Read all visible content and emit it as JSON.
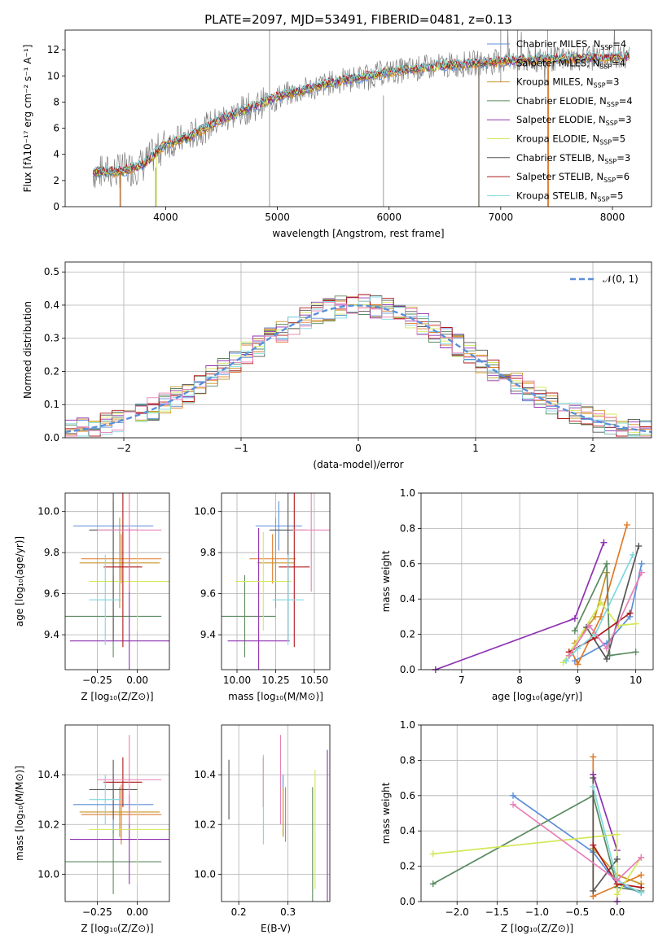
{
  "colors": {
    "Chabrier MILES": "#5b8fd9",
    "Salpeter MILES": "#e07b28",
    "Kroupa MILES": "#c8952a",
    "Chabrier ELODIE": "#5a8a5f",
    "Salpeter ELODIE": "#8e32b0",
    "Kroupa ELODIE": "#d4e85a",
    "Chabrier STELIB": "#555555",
    "Salpeter STELIB": "#b01818",
    "Kroupa STELIB": "#7fd8e0",
    "extra_pink": "#e87fb8",
    "data": "#808080",
    "normal": "#5b8fd9"
  },
  "chart_data": [
    {
      "id": "spectrum",
      "type": "line",
      "title": "PLATE=2097, MJD=53491, FIBERID=0481, z=0.13",
      "xlabel": "wavelength [Angstrom, rest frame]",
      "ylabel": "Flux [fλ10⁻¹⁷ erg cm⁻² s⁻¹ A⁻¹]",
      "xlim": [
        3100,
        8350
      ],
      "ylim": [
        0,
        13.5
      ],
      "xticks": [
        "4000",
        "5000",
        "6000",
        "7000",
        "8000"
      ],
      "yticks": [
        "0",
        "2",
        "4",
        "6",
        "8",
        "10",
        "12"
      ],
      "continuum": [
        [
          3350,
          2.6
        ],
        [
          3600,
          2.7
        ],
        [
          3800,
          3.2
        ],
        [
          4000,
          4.8
        ],
        [
          4200,
          5.3
        ],
        [
          4500,
          6.7
        ],
        [
          4800,
          7.7
        ],
        [
          5000,
          8.4
        ],
        [
          5500,
          9.5
        ],
        [
          6000,
          10.3
        ],
        [
          6500,
          10.8
        ],
        [
          7000,
          11.1
        ],
        [
          7500,
          11.3
        ],
        [
          8000,
          11.4
        ],
        [
          8150,
          11.5
        ]
      ],
      "legend": [
        {
          "label": "Chabrier MILES, N",
          "sub": "SSP",
          "suffix": "=4"
        },
        {
          "label": "Salpeter MILES, N",
          "sub": "SSP",
          "suffix": "=4"
        },
        {
          "label": "Kroupa MILES, N",
          "sub": "SSP",
          "suffix": "=3"
        },
        {
          "label": "Chabrier ELODIE, N",
          "sub": "SSP",
          "suffix": "=4"
        },
        {
          "label": "Salpeter ELODIE, N",
          "sub": "SSP",
          "suffix": "=3"
        },
        {
          "label": "Kroupa ELODIE, N",
          "sub": "SSP",
          "suffix": "=5"
        },
        {
          "label": "Chabrier STELIB, N",
          "sub": "SSP",
          "suffix": "=3"
        },
        {
          "label": "Salpeter STELIB, N",
          "sub": "SSP",
          "suffix": "=6"
        },
        {
          "label": "Kroupa STELIB, N",
          "sub": "SSP",
          "suffix": "=5"
        }
      ]
    },
    {
      "id": "residuals",
      "type": "line",
      "xlabel": "(data-model)/error",
      "ylabel": "Normed distribution",
      "xlim": [
        -2.5,
        2.5
      ],
      "ylim": [
        0,
        0.53
      ],
      "xticks": [
        "−2",
        "−1",
        "0",
        "1",
        "2"
      ],
      "xtick_values": [
        -2,
        -1,
        0,
        1,
        2
      ],
      "yticks": [
        "0.0",
        "0.1",
        "0.2",
        "0.3",
        "0.4",
        "0.5"
      ],
      "legend": "𝒩(0, 1)"
    },
    {
      "id": "age_vs_Z",
      "type": "scatter",
      "xlabel": "Z [log₁₀(Z/Z⊙)]",
      "ylabel": "age  [log₁₀(age/yr)]",
      "xlim": [
        -0.45,
        0.2
      ],
      "ylim": [
        9.23,
        10.09
      ],
      "xticks": [
        "−0.25",
        "0.00"
      ],
      "xtick_values": [
        -0.25,
        0.0
      ],
      "yticks": [
        "9.4",
        "9.6",
        "9.8",
        "10.0"
      ],
      "ytick_values": [
        9.4,
        9.6,
        9.8,
        10.0
      ],
      "points": [
        {
          "series": "Chabrier MILES",
          "x": -0.15,
          "y": 9.93,
          "xerr": 0.25,
          "yerr": 0.12
        },
        {
          "series": "Salpeter MILES",
          "x": -0.1,
          "y": 9.77,
          "xerr": 0.25,
          "yerr": 0.12
        },
        {
          "series": "Kroupa MILES",
          "x": -0.11,
          "y": 9.75,
          "xerr": 0.25,
          "yerr": 0.22
        },
        {
          "series": "Chabrier ELODIE",
          "x": -0.15,
          "y": 9.49,
          "xerr": 0.3,
          "yerr": 0.2
        },
        {
          "series": "Salpeter ELODIE",
          "x": -0.05,
          "y": 9.37,
          "xerr": 0.37,
          "yerr": 0.55
        },
        {
          "series": "Kroupa ELODIE",
          "x": 0.0,
          "y": 9.66,
          "xerr": 0.3,
          "yerr": 0.24
        },
        {
          "series": "Chabrier STELIB",
          "x": -0.15,
          "y": 9.91,
          "xerr": 0.15,
          "yerr": 0.54
        },
        {
          "series": "Salpeter STELIB",
          "x": -0.09,
          "y": 9.73,
          "xerr": 0.12,
          "yerr": 0.39
        },
        {
          "series": "Kroupa STELIB",
          "x": -0.2,
          "y": 9.57,
          "xerr": 0.1,
          "yerr": 0.22
        },
        {
          "series": "extra_pink",
          "x": -0.05,
          "y": 9.91,
          "xerr": 0.2,
          "yerr": 0.3
        }
      ]
    },
    {
      "id": "age_vs_mass",
      "type": "scatter",
      "xlabel": "mass [log₁₀(M/M⊙)]",
      "xlim": [
        9.9,
        10.6
      ],
      "ylim": [
        9.23,
        10.09
      ],
      "xticks": [
        "10.00",
        "10.25",
        "10.50"
      ],
      "xtick_values": [
        10.0,
        10.25,
        10.5
      ],
      "yticks": [
        "9.4",
        "9.6",
        "9.8",
        "10.0"
      ],
      "ytick_values": [
        9.4,
        9.6,
        9.8,
        10.0
      ],
      "points": [
        {
          "series": "Chabrier MILES",
          "x": 10.27,
          "y": 9.93,
          "xerr": 0.15,
          "yerr": 0.12
        },
        {
          "series": "Salpeter MILES",
          "x": 10.23,
          "y": 9.77,
          "xerr": 0.15,
          "yerr": 0.12
        },
        {
          "series": "Kroupa MILES",
          "x": 10.25,
          "y": 9.75,
          "xerr": 0.12,
          "yerr": 0.22
        },
        {
          "series": "Chabrier ELODIE",
          "x": 10.05,
          "y": 9.49,
          "xerr": 0.2,
          "yerr": 0.2
        },
        {
          "series": "Salpeter ELODIE",
          "x": 10.14,
          "y": 9.37,
          "xerr": 0.2,
          "yerr": 0.55
        },
        {
          "series": "Kroupa ELODIE",
          "x": 10.17,
          "y": 9.66,
          "xerr": 0.18,
          "yerr": 0.24
        },
        {
          "series": "Chabrier STELIB",
          "x": 10.33,
          "y": 9.91,
          "xerr": 0.12,
          "yerr": 0.54
        },
        {
          "series": "Salpeter STELIB",
          "x": 10.37,
          "y": 9.73,
          "xerr": 0.1,
          "yerr": 0.39
        },
        {
          "series": "Kroupa STELIB",
          "x": 10.33,
          "y": 9.57,
          "xerr": 0.1,
          "yerr": 0.22
        },
        {
          "series": "extra_pink",
          "x": 10.48,
          "y": 9.91,
          "xerr": 0.12,
          "yerr": 0.3
        }
      ]
    },
    {
      "id": "weight_vs_age",
      "type": "line",
      "xlabel": "age  [log₁₀(age/yr)]",
      "ylabel": "mass weight",
      "xlim": [
        6.3,
        10.3
      ],
      "ylim": [
        0,
        1
      ],
      "xticks": [
        "7",
        "8",
        "9",
        "10"
      ],
      "xtick_values": [
        7,
        8,
        9,
        10
      ],
      "yticks": [
        "0.0",
        "0.2",
        "0.4",
        "0.6",
        "0.8",
        "1.0"
      ],
      "ytick_values": [
        0,
        0.2,
        0.4,
        0.6,
        0.8,
        1.0
      ],
      "series": [
        {
          "name": "Chabrier MILES",
          "points": [
            [
              8.95,
              0.05
            ],
            [
              9.5,
              0.15
            ],
            [
              9.9,
              0.3
            ],
            [
              10.1,
              0.6
            ]
          ]
        },
        {
          "name": "Salpeter MILES",
          "points": [
            [
              8.9,
              0.1
            ],
            [
              9.0,
              0.03
            ],
            [
              9.4,
              0.3
            ],
            [
              9.85,
              0.82
            ]
          ]
        },
        {
          "name": "Kroupa MILES",
          "points": [
            [
              8.95,
              0.15
            ],
            [
              9.3,
              0.3
            ],
            [
              9.5,
              0.55
            ]
          ]
        },
        {
          "name": "Chabrier ELODIE",
          "points": [
            [
              8.95,
              0.22
            ],
            [
              9.5,
              0.6
            ],
            [
              9.55,
              0.08
            ],
            [
              10.0,
              0.1
            ]
          ]
        },
        {
          "name": "Salpeter ELODIE",
          "points": [
            [
              6.55,
              0.0
            ],
            [
              8.95,
              0.29
            ],
            [
              9.45,
              0.72
            ]
          ]
        },
        {
          "name": "Kroupa ELODIE",
          "points": [
            [
              8.75,
              0.04
            ],
            [
              9.4,
              0.38
            ],
            [
              9.7,
              0.25
            ],
            [
              10.0,
              0.26
            ]
          ]
        },
        {
          "name": "Chabrier STELIB",
          "points": [
            [
              9.15,
              0.24
            ],
            [
              9.5,
              0.06
            ],
            [
              10.05,
              0.7
            ]
          ]
        },
        {
          "name": "Salpeter STELIB",
          "points": [
            [
              8.85,
              0.1
            ],
            [
              9.3,
              0.18
            ],
            [
              9.9,
              0.32
            ]
          ]
        },
        {
          "name": "Kroupa STELIB",
          "points": [
            [
              8.8,
              0.05
            ],
            [
              9.0,
              0.12
            ],
            [
              9.3,
              0.2
            ],
            [
              9.95,
              0.65
            ]
          ]
        },
        {
          "name": "extra_pink",
          "points": [
            [
              8.85,
              0.08
            ],
            [
              9.2,
              0.25
            ],
            [
              9.5,
              0.12
            ],
            [
              10.1,
              0.55
            ]
          ]
        }
      ]
    },
    {
      "id": "mass_vs_Z",
      "type": "scatter",
      "xlabel": "Z [log₁₀(Z/Z⊙)]",
      "ylabel": "mass [log₁₀(M/M⊙)]",
      "xlim": [
        -0.45,
        0.2
      ],
      "ylim": [
        9.89,
        10.6
      ],
      "xticks": [
        "−0.25",
        "0.00"
      ],
      "xtick_values": [
        -0.25,
        0.0
      ],
      "yticks": [
        "10.0",
        "10.2",
        "10.4"
      ],
      "ytick_values": [
        10.0,
        10.2,
        10.4
      ],
      "points": [
        {
          "series": "Chabrier MILES",
          "x": -0.15,
          "y": 10.28,
          "xerr": 0.25,
          "yerr": 0.12
        },
        {
          "series": "Salpeter MILES",
          "x": -0.1,
          "y": 10.24,
          "xerr": 0.25,
          "yerr": 0.12
        },
        {
          "series": "Kroupa MILES",
          "x": -0.11,
          "y": 10.25,
          "xerr": 0.25,
          "yerr": 0.1
        },
        {
          "series": "Chabrier ELODIE",
          "x": -0.15,
          "y": 10.05,
          "xerr": 0.3,
          "yerr": 0.13
        },
        {
          "series": "Salpeter ELODIE",
          "x": -0.05,
          "y": 10.14,
          "xerr": 0.37,
          "yerr": 0.18
        },
        {
          "series": "Kroupa ELODIE",
          "x": 0.0,
          "y": 10.18,
          "xerr": 0.3,
          "yerr": 0.22
        },
        {
          "series": "Chabrier STELIB",
          "x": -0.15,
          "y": 10.34,
          "xerr": 0.15,
          "yerr": 0.12
        },
        {
          "series": "Salpeter STELIB",
          "x": -0.09,
          "y": 10.37,
          "xerr": 0.12,
          "yerr": 0.1
        },
        {
          "series": "Kroupa STELIB",
          "x": -0.2,
          "y": 10.3,
          "xerr": 0.1,
          "yerr": 0.1
        },
        {
          "series": "extra_pink",
          "x": -0.05,
          "y": 10.38,
          "xerr": 0.2,
          "yerr": 0.18
        }
      ]
    },
    {
      "id": "mass_vs_EBV",
      "type": "scatter",
      "xlabel": "E(B-V)",
      "xlim": [
        0.165,
        0.385
      ],
      "ylim": [
        9.89,
        10.6
      ],
      "xticks": [
        "0.2",
        "0.3"
      ],
      "xtick_values": [
        0.2,
        0.3
      ],
      "yticks": [
        "10.0",
        "10.2",
        "10.4"
      ],
      "ytick_values": [
        10.0,
        10.2,
        10.4
      ],
      "points": [
        {
          "series": "Chabrier MILES",
          "x": 0.29,
          "y": 10.28,
          "yerr": 0.12
        },
        {
          "series": "Salpeter MILES",
          "x": 0.295,
          "y": 10.24,
          "yerr": 0.11
        },
        {
          "series": "Kroupa MILES",
          "x": 0.29,
          "y": 10.25,
          "yerr": 0.1
        },
        {
          "series": "Chabrier ELODIE",
          "x": 0.35,
          "y": 10.05,
          "yerr": 0.3
        },
        {
          "series": "Salpeter ELODIE",
          "x": 0.38,
          "y": 10.14,
          "yerr": 0.36
        },
        {
          "series": "Kroupa ELODIE",
          "x": 0.355,
          "y": 10.18,
          "yerr": 0.24
        },
        {
          "series": "Chabrier STELIB",
          "x": 0.18,
          "y": 10.34,
          "yerr": 0.12
        },
        {
          "series": "Salpeter STELIB",
          "x": 0.25,
          "y": 10.37,
          "yerr": 0.1
        },
        {
          "series": "Kroupa STELIB",
          "x": 0.25,
          "y": 10.3,
          "yerr": 0.18
        },
        {
          "series": "extra_pink",
          "x": 0.285,
          "y": 10.38,
          "yerr": 0.18
        }
      ]
    },
    {
      "id": "weight_vs_Z",
      "type": "line",
      "xlabel": "Z [log₁₀(Z/Z⊙)]",
      "ylabel": "mass weight",
      "xlim": [
        -2.45,
        0.45
      ],
      "ylim": [
        0,
        1
      ],
      "xticks": [
        "−2.0",
        "−1.5",
        "−1.0",
        "−0.5",
        "0.0"
      ],
      "xtick_values": [
        -2.0,
        -1.5,
        -1.0,
        -0.5,
        0.0
      ],
      "yticks": [
        "0.0",
        "0.2",
        "0.4",
        "0.6",
        "0.8",
        "1.0"
      ],
      "ytick_values": [
        0,
        0.2,
        0.4,
        0.6,
        0.8,
        1.0
      ],
      "series": [
        {
          "name": "Chabrier MILES",
          "points": [
            [
              -1.3,
              0.6
            ],
            [
              -0.3,
              0.28
            ],
            [
              0.0,
              0.1
            ],
            [
              0.3,
              0.05
            ]
          ]
        },
        {
          "name": "Salpeter MILES",
          "points": [
            [
              -0.3,
              0.82
            ],
            [
              -0.3,
              0.03
            ],
            [
              0.3,
              0.15
            ]
          ]
        },
        {
          "name": "Kroupa MILES",
          "points": [
            [
              -0.3,
              0.3
            ],
            [
              0.0,
              0.15
            ],
            [
              0.3,
              0.1
            ]
          ]
        },
        {
          "name": "Chabrier ELODIE",
          "points": [
            [
              -2.3,
              0.1
            ],
            [
              -0.3,
              0.6
            ],
            [
              0.0,
              0.08
            ],
            [
              0.3,
              0.06
            ]
          ]
        },
        {
          "name": "Salpeter ELODIE",
          "points": [
            [
              -0.3,
              0.72
            ],
            [
              0.0,
              0.29
            ],
            [
              0.0,
              0.0
            ]
          ]
        },
        {
          "name": "Kroupa ELODIE",
          "points": [
            [
              -2.3,
              0.27
            ],
            [
              0.0,
              0.38
            ],
            [
              0.0,
              0.04
            ],
            [
              0.3,
              0.25
            ]
          ]
        },
        {
          "name": "Chabrier STELIB",
          "points": [
            [
              -0.3,
              0.7
            ],
            [
              -0.3,
              0.06
            ],
            [
              0.0,
              0.24
            ]
          ]
        },
        {
          "name": "Salpeter STELIB",
          "points": [
            [
              -0.3,
              0.32
            ],
            [
              0.0,
              0.1
            ],
            [
              0.3,
              0.08
            ]
          ]
        },
        {
          "name": "Kroupa STELIB",
          "points": [
            [
              -0.3,
              0.65
            ],
            [
              0.0,
              0.12
            ],
            [
              0.3,
              0.05
            ]
          ]
        },
        {
          "name": "extra_pink",
          "points": [
            [
              -1.3,
              0.55
            ],
            [
              0.0,
              0.12
            ],
            [
              0.3,
              0.25
            ]
          ]
        }
      ]
    }
  ]
}
